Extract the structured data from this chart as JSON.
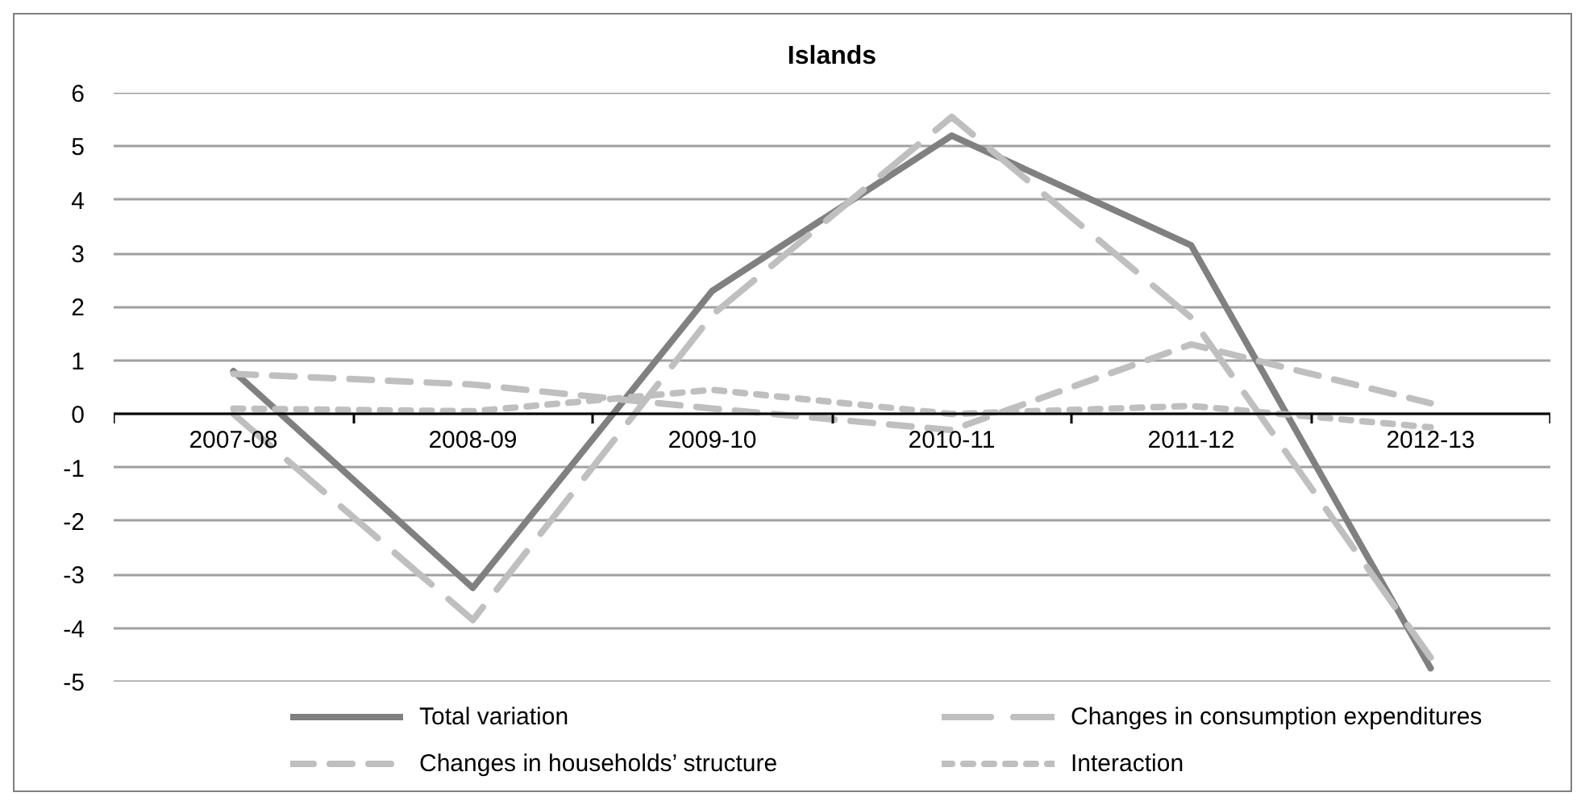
{
  "chart_data": {
    "type": "line",
    "title": "Islands",
    "categories": [
      "2007-08",
      "2008-09",
      "2009-10",
      "2010-11",
      "2011-12",
      "2012-13"
    ],
    "series": [
      {
        "name": "Total variation",
        "color": "#808080",
        "line_style": "solid",
        "values": [
          0.8,
          -3.25,
          2.3,
          5.2,
          3.15,
          -4.75
        ]
      },
      {
        "name": "Changes in consumption expenditures",
        "color": "#bfbfbf",
        "line_style": "longdash",
        "values": [
          0.0,
          -3.85,
          1.85,
          5.55,
          1.8,
          -4.55
        ]
      },
      {
        "name": "Changes in households’ structure",
        "color": "#bfbfbf",
        "line_style": "dashed",
        "values": [
          0.75,
          0.55,
          0.1,
          -0.3,
          1.3,
          0.2
        ]
      },
      {
        "name": "Interaction",
        "color": "#bfbfbf",
        "line_style": "dotted",
        "values": [
          0.1,
          0.05,
          0.45,
          0.0,
          0.15,
          -0.25
        ]
      }
    ],
    "ylim": [
      -5,
      6
    ],
    "yticks": [
      -5,
      -4,
      -3,
      -2,
      -1,
      0,
      1,
      2,
      3,
      4,
      5,
      6
    ],
    "grid": "y",
    "legend": "bottom"
  }
}
